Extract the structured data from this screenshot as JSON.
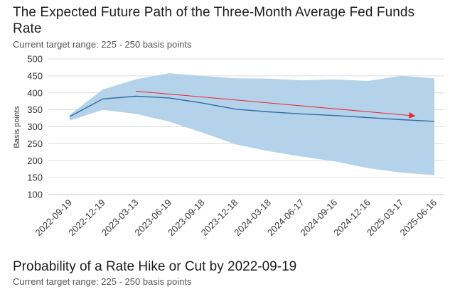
{
  "header": {
    "title": "The Expected Future Path of the Three-Month Average Fed Funds Rate",
    "subtitle": "Current target range: 225 - 250 basis points"
  },
  "section2": {
    "title": "Probability of a Rate Hike or Cut by 2022-09-19",
    "subtitle": "Current target range: 225 - 250 basis points"
  },
  "chart_data": {
    "type": "area",
    "ylabel": "Basis points",
    "xlabel": "",
    "ylim": [
      100,
      500
    ],
    "yticks": [
      100,
      150,
      200,
      250,
      300,
      350,
      400,
      450,
      500
    ],
    "grid": true,
    "legend": "none",
    "categories": [
      "2022-09-19",
      "2022-12-19",
      "2023-03-13",
      "2023-06-19",
      "2023-09-18",
      "2023-12-18",
      "2024-03-18",
      "2024-06-17",
      "2024-09-16",
      "2024-12-16",
      "2025-03-17",
      "2025-06-16"
    ],
    "series": [
      {
        "values": [
          330,
          382,
          390,
          385,
          370,
          352,
          344,
          338,
          333,
          327,
          321,
          316
        ]
      },
      {
        "values": [
          335,
          410,
          440,
          458,
          450,
          443,
          442,
          437,
          440,
          435,
          450,
          443
        ]
      },
      {
        "values": [
          318,
          350,
          338,
          315,
          283,
          248,
          228,
          212,
          198,
          178,
          165,
          157
        ]
      }
    ],
    "annotation": {
      "type": "arrow",
      "from": [
        "2023-03-13",
        405
      ],
      "to": [
        "2025-03-17",
        332
      ],
      "color": "#e8262b"
    },
    "colors": {
      "band": "#b4d2ea",
      "line": "#2e6da4",
      "grid": "#d0d0d0",
      "arrow": "#e8262b"
    }
  }
}
